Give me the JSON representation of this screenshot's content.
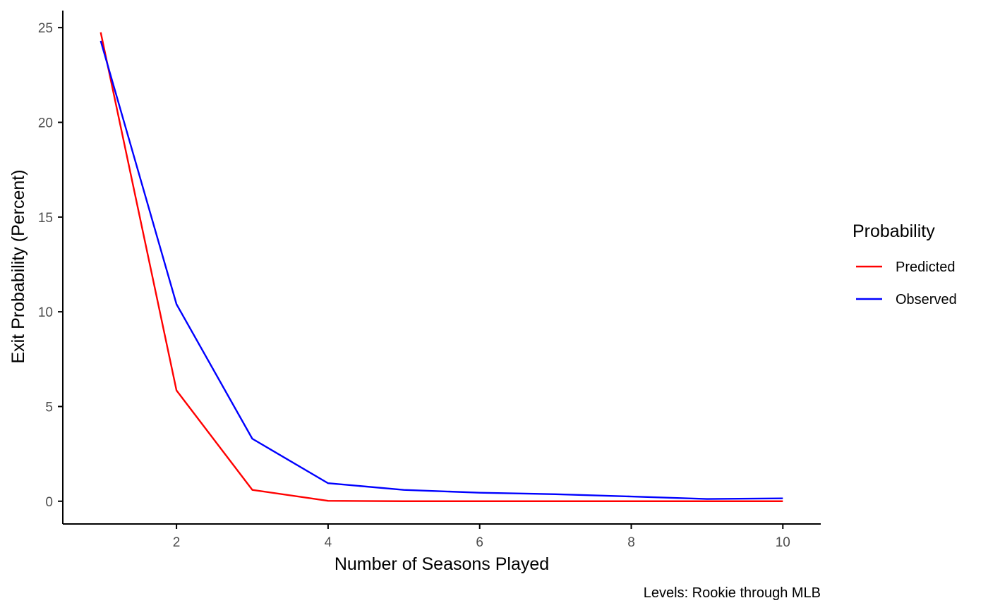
{
  "chart_data": {
    "type": "line",
    "title": "",
    "xlabel": "Number of Seasons Played",
    "ylabel": "Exit Probability (Percent)",
    "caption": "Levels: Rookie through MLB",
    "xlim": [
      0.5,
      10.5
    ],
    "ylim": [
      -1.2,
      25.9
    ],
    "x_ticks": [
      2,
      4,
      6,
      8,
      10
    ],
    "y_ticks": [
      0,
      5,
      10,
      15,
      20,
      25
    ],
    "grid": false,
    "legend": {
      "title": "Probability",
      "position": "right"
    },
    "x": [
      1,
      2,
      3,
      4,
      5,
      6,
      7,
      8,
      9,
      10
    ],
    "series": [
      {
        "name": "Predicted",
        "color": "#ff0000",
        "values": [
          24.75,
          5.85,
          0.6,
          0.02,
          0.0,
          0.0,
          0.0,
          0.0,
          0.0,
          0.0
        ]
      },
      {
        "name": "Observed",
        "color": "#0000ff",
        "values": [
          24.3,
          10.4,
          3.3,
          0.95,
          0.6,
          0.45,
          0.37,
          0.25,
          0.12,
          0.15
        ]
      }
    ]
  }
}
